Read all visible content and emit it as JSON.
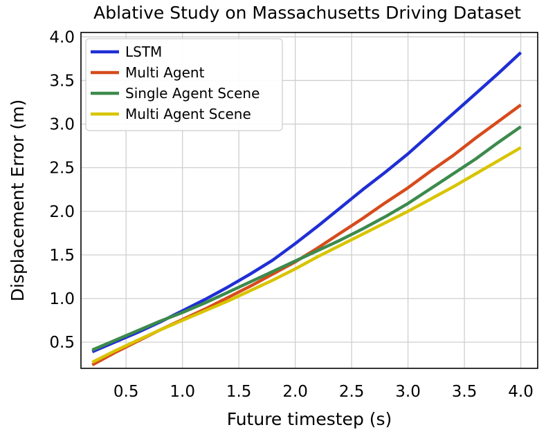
{
  "chart_data": {
    "type": "line",
    "title": "Ablative Study on Massachusetts Driving Dataset",
    "xlabel": "Future timestep (s)",
    "ylabel": "Displacement Error (m)",
    "xlim": [
      0.1,
      4.15
    ],
    "ylim": [
      0.2,
      4.05
    ],
    "xticks": [
      "0.5",
      "1.0",
      "1.5",
      "2.0",
      "2.5",
      "3.0",
      "3.5",
      "4.0"
    ],
    "yticks": [
      "0.5",
      "1.0",
      "1.5",
      "2.0",
      "2.5",
      "3.0",
      "3.5",
      "4.0"
    ],
    "grid": true,
    "legend_position": "top-left",
    "x": [
      0.2,
      0.4,
      0.6,
      0.8,
      1.0,
      1.2,
      1.4,
      1.6,
      1.8,
      2.0,
      2.2,
      2.4,
      2.6,
      2.8,
      3.0,
      3.2,
      3.4,
      3.6,
      3.8,
      4.0
    ],
    "series": [
      {
        "name": "LSTM",
        "color": "#1f2fd4",
        "values": [
          0.39,
          0.5,
          0.61,
          0.73,
          0.86,
          0.99,
          1.13,
          1.28,
          1.44,
          1.63,
          1.83,
          2.04,
          2.25,
          2.45,
          2.66,
          2.89,
          3.12,
          3.35,
          3.58,
          3.82
        ]
      },
      {
        "name": "Multi Agent",
        "color": "#d64b1c",
        "values": [
          0.24,
          0.38,
          0.51,
          0.64,
          0.76,
          0.88,
          1.01,
          1.14,
          1.28,
          1.42,
          1.58,
          1.75,
          1.92,
          2.1,
          2.27,
          2.46,
          2.64,
          2.84,
          3.03,
          3.22
        ]
      },
      {
        "name": "Single Agent Scene",
        "color": "#3c8a4c",
        "values": [
          0.41,
          0.52,
          0.63,
          0.74,
          0.84,
          0.95,
          1.07,
          1.19,
          1.31,
          1.43,
          1.55,
          1.67,
          1.8,
          1.94,
          2.09,
          2.26,
          2.43,
          2.6,
          2.79,
          2.97
        ]
      },
      {
        "name": "Multi Agent Scene",
        "color": "#d8c400",
        "values": [
          0.27,
          0.4,
          0.52,
          0.64,
          0.75,
          0.86,
          0.97,
          1.09,
          1.21,
          1.34,
          1.48,
          1.61,
          1.74,
          1.87,
          2.0,
          2.14,
          2.28,
          2.43,
          2.58,
          2.73
        ]
      }
    ]
  }
}
